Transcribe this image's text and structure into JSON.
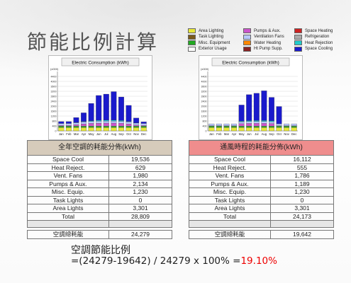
{
  "title": "節能比例計算",
  "legend": [
    {
      "name": "Area Lighting",
      "color": "#e8e83a"
    },
    {
      "name": "Pumps & Aux.",
      "color": "#cc55cc"
    },
    {
      "name": "Space Heating",
      "color": "#cc2222"
    },
    {
      "name": "Task Lighting",
      "color": "#7a5a1a"
    },
    {
      "name": "Ventilation Fans",
      "color": "#b8c8ff"
    },
    {
      "name": "Refrigeration",
      "color": "#aaaaaa"
    },
    {
      "name": "Misc. Equipment",
      "color": "#22aa22"
    },
    {
      "name": "Water Heating",
      "color": "#ff8800"
    },
    {
      "name": "Heat Rejection",
      "color": "#22cccc"
    },
    {
      "name": "Exterior Usage",
      "color": "#ffffff"
    },
    {
      "name": "Ht Pump Supp.",
      "color": "#882222"
    },
    {
      "name": "Space Cooling",
      "color": "#1a1acc"
    }
  ],
  "chart_data": [
    {
      "type": "bar",
      "title": "Electric Consumption (kWh)",
      "unit_label": "(x000)",
      "categories": [
        "Jan",
        "Feb",
        "Mar",
        "Apr",
        "May",
        "Jun",
        "Jul",
        "Aug",
        "Sep",
        "Oct",
        "Nov",
        "Dec"
      ],
      "yticks": [
        0,
        400,
        800,
        1200,
        1600,
        2000,
        2400,
        2800,
        3200,
        3600,
        4000,
        4400
      ],
      "ylim": [
        0,
        4800
      ],
      "series": [
        {
          "name": "Area Lighting",
          "color": "#e8e83a",
          "values": [
            280,
            280,
            280,
            280,
            280,
            280,
            280,
            280,
            280,
            280,
            280,
            280
          ]
        },
        {
          "name": "Misc. Equipment",
          "color": "#22aa22",
          "values": [
            100,
            100,
            100,
            100,
            100,
            100,
            100,
            100,
            100,
            100,
            100,
            100
          ]
        },
        {
          "name": "Pumps & Aux.",
          "color": "#cc55cc",
          "values": [
            60,
            60,
            120,
            180,
            220,
            240,
            250,
            250,
            230,
            180,
            90,
            60
          ]
        },
        {
          "name": "Ventilation Fans",
          "color": "#b8c8ff",
          "values": [
            160,
            160,
            160,
            160,
            160,
            160,
            160,
            160,
            160,
            160,
            160,
            160
          ]
        },
        {
          "name": "Heat Rejection",
          "color": "#22cccc",
          "values": [
            0,
            0,
            20,
            40,
            60,
            80,
            80,
            80,
            70,
            40,
            10,
            0
          ]
        },
        {
          "name": "Space Cooling",
          "color": "#1a1acc",
          "values": [
            150,
            150,
            400,
            700,
            1400,
            2000,
            2100,
            2300,
            1900,
            1300,
            400,
            130
          ]
        }
      ]
    },
    {
      "type": "bar",
      "title": "Electric Consumption (kWh)",
      "unit_label": "(x000)",
      "categories": [
        "Jan",
        "Feb",
        "Mar",
        "Apr",
        "May",
        "Jun",
        "Jul",
        "Aug",
        "Sep",
        "Oct",
        "Nov",
        "Dec"
      ],
      "yticks": [
        0,
        400,
        800,
        1200,
        1600,
        2000,
        2400,
        2800,
        3200,
        3600,
        4000,
        4400
      ],
      "ylim": [
        0,
        4800
      ],
      "series": [
        {
          "name": "Area Lighting",
          "color": "#e8e83a",
          "values": [
            280,
            280,
            280,
            280,
            280,
            280,
            280,
            280,
            280,
            280,
            280,
            280
          ]
        },
        {
          "name": "Misc. Equipment",
          "color": "#22aa22",
          "values": [
            100,
            100,
            100,
            100,
            100,
            100,
            100,
            100,
            100,
            100,
            100,
            100
          ]
        },
        {
          "name": "Pumps & Aux.",
          "color": "#cc55cc",
          "values": [
            40,
            40,
            40,
            40,
            200,
            220,
            230,
            230,
            210,
            40,
            40,
            40
          ]
        },
        {
          "name": "Ventilation Fans",
          "color": "#b8c8ff",
          "values": [
            150,
            150,
            150,
            150,
            150,
            150,
            150,
            150,
            150,
            150,
            150,
            150
          ]
        },
        {
          "name": "Heat Rejection",
          "color": "#22cccc",
          "values": [
            0,
            0,
            0,
            0,
            60,
            80,
            80,
            80,
            70,
            0,
            0,
            0
          ]
        },
        {
          "name": "Space Cooling",
          "color": "#1a1acc",
          "values": [
            0,
            0,
            0,
            0,
            1300,
            2100,
            2200,
            2400,
            1900,
            1400,
            0,
            0
          ]
        }
      ]
    }
  ],
  "tables": [
    {
      "header": "全年空調的耗能分佈(kWh)",
      "rows": [
        [
          "Space Cool",
          "19,536"
        ],
        [
          "Heat Reject.",
          "629"
        ],
        [
          "Vent. Fans",
          "1,980"
        ],
        [
          "Pumps & Aux.",
          "2,134"
        ],
        [
          "Misc. Equip.",
          "1,230"
        ],
        [
          "Task Lights",
          "0"
        ],
        [
          "Area Lights",
          "3,301"
        ],
        [
          "Total",
          "28,809"
        ]
      ],
      "hvac_label": "空調總耗能",
      "hvac_value": "24,279"
    },
    {
      "header": "通風時程的耗能分佈(kWh)",
      "rows": [
        [
          "Space Cool",
          "16,112"
        ],
        [
          "Heat Reject.",
          "555"
        ],
        [
          "Vent. Fans",
          "1,786"
        ],
        [
          "Pumps & Aux.",
          "1,189"
        ],
        [
          "Misc. Equip.",
          "1,230"
        ],
        [
          "Task Lights",
          "0"
        ],
        [
          "Area Lights",
          "3,301"
        ],
        [
          "Total",
          "24,173"
        ]
      ],
      "hvac_label": "空調總耗能",
      "hvac_value": "19,642"
    }
  ],
  "ratio_label": "空調節能比例",
  "formula": "=(24279-19642) / 24279 x 100% =",
  "formula_result": "19.10%"
}
